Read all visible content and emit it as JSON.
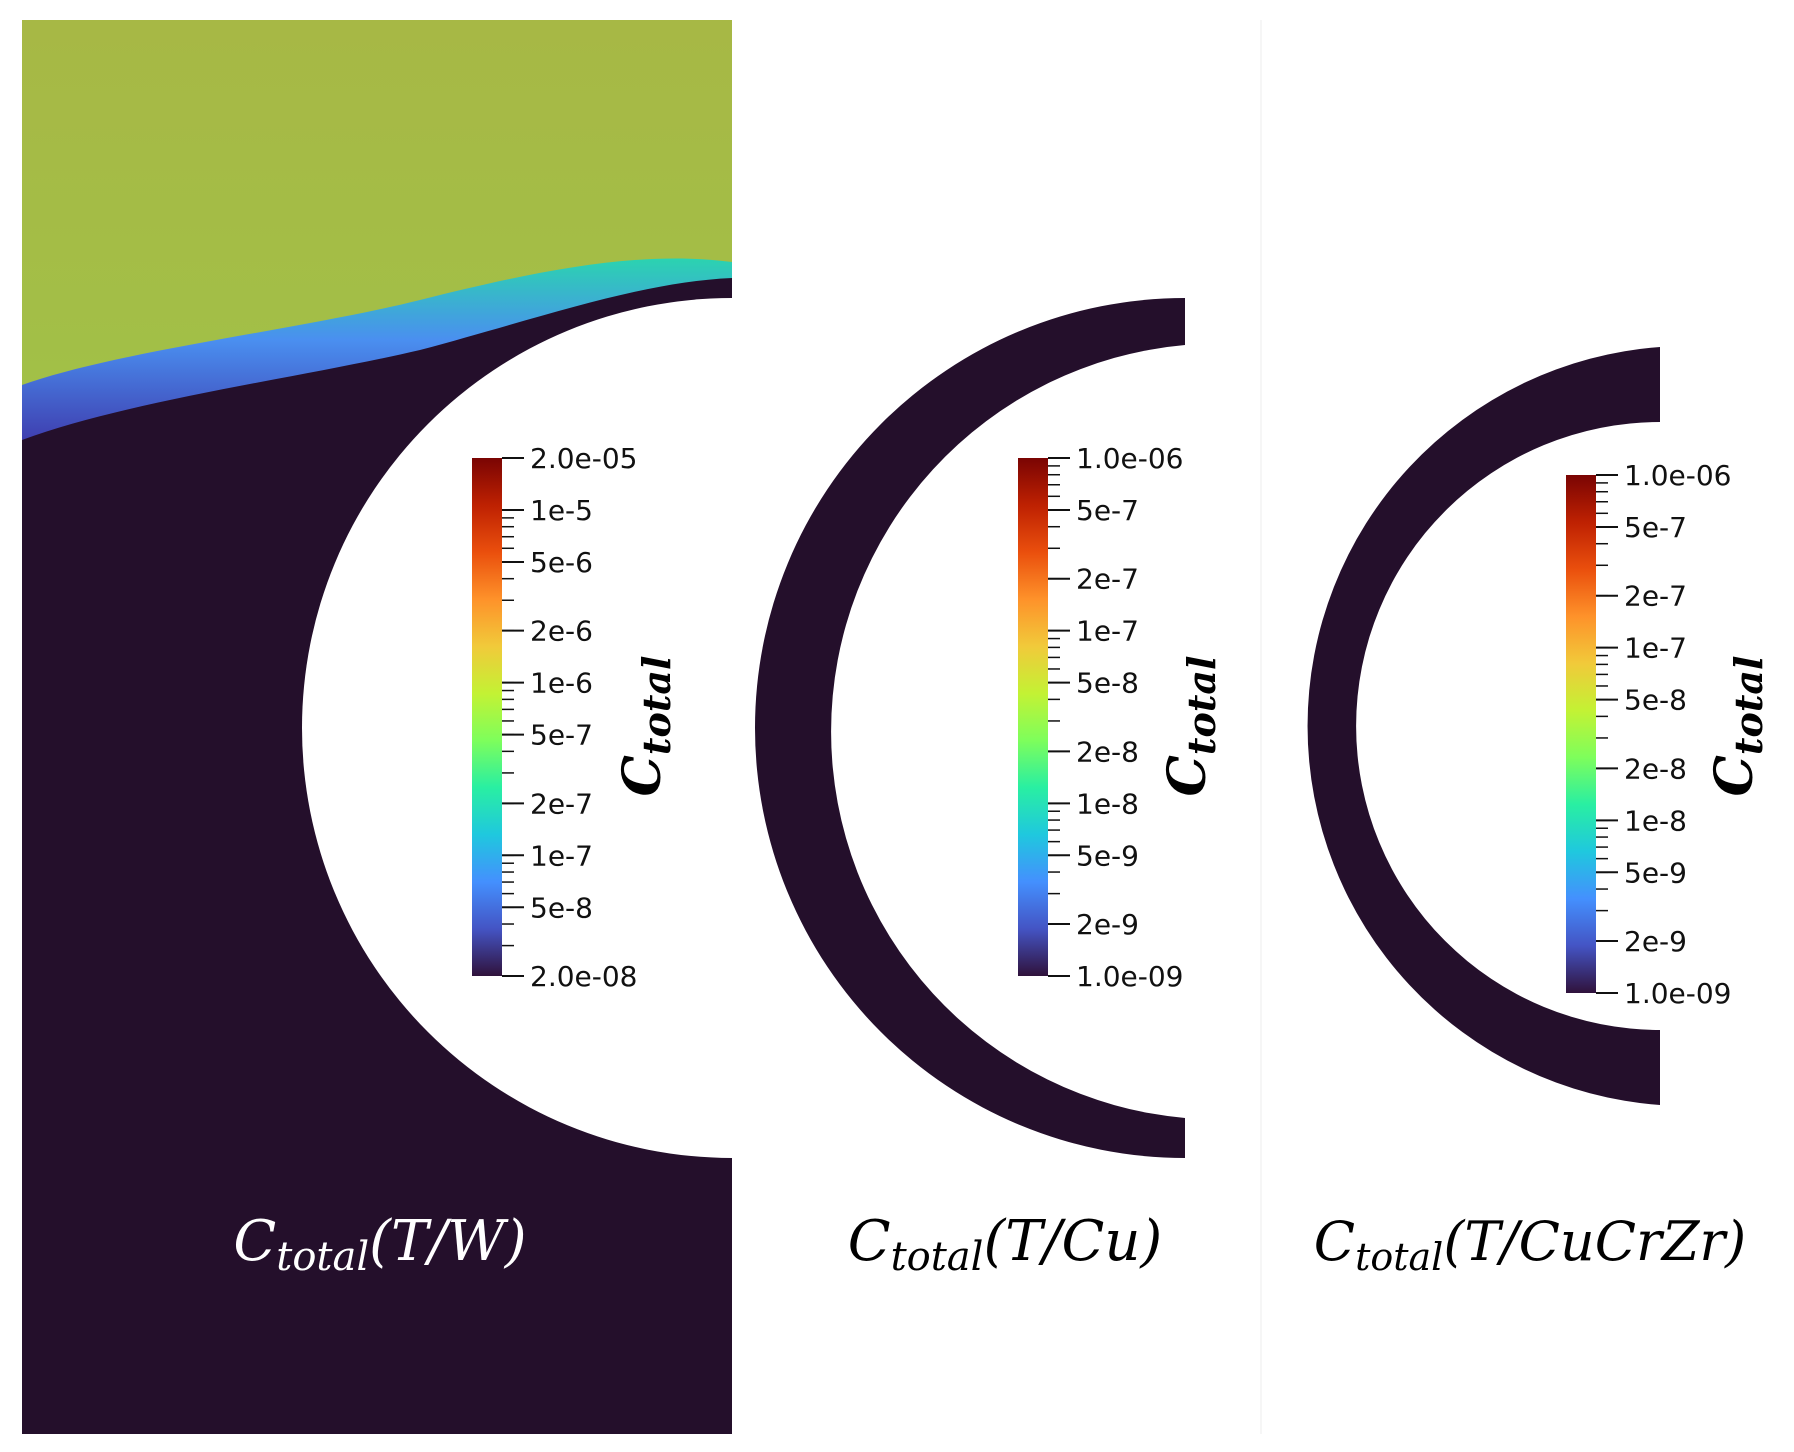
{
  "colors": {
    "background": "#ffffff",
    "low_value": "#240f2b",
    "colormap": [
      "#30123b",
      "#4454c4",
      "#4490fe",
      "#1fc8de",
      "#29efa2",
      "#7efe5b",
      "#c3f234",
      "#f1ca3a",
      "#fe922a",
      "#ea4f0d",
      "#be2102",
      "#7a0403"
    ]
  },
  "panels": [
    {
      "id": "w",
      "title_main": "C",
      "title_sub": "total",
      "title_rest": "(T/W)",
      "colorbar": {
        "title_main": "C",
        "title_sub": "total",
        "scale": "log",
        "range": [
          2e-08,
          2e-05
        ],
        "ticks": [
          {
            "label": "2.0e-05",
            "value": 2e-05
          },
          {
            "label": "1e-5",
            "value": 1e-05
          },
          {
            "label": "5e-6",
            "value": 5e-06
          },
          {
            "label": "2e-6",
            "value": 2e-06
          },
          {
            "label": "1e-6",
            "value": 1e-06
          },
          {
            "label": "5e-7",
            "value": 5e-07
          },
          {
            "label": "2e-7",
            "value": 2e-07
          },
          {
            "label": "1e-7",
            "value": 1e-07
          },
          {
            "label": "5e-8",
            "value": 5e-08
          },
          {
            "label": "2.0e-08",
            "value": 2e-08
          }
        ]
      }
    },
    {
      "id": "cu",
      "title_main": "C",
      "title_sub": "total",
      "title_rest": "(T/Cu)",
      "colorbar": {
        "title_main": "C",
        "title_sub": "total",
        "scale": "log",
        "range": [
          1e-09,
          1e-06
        ],
        "ticks": [
          {
            "label": "1.0e-06",
            "value": 1e-06
          },
          {
            "label": "5e-7",
            "value": 5e-07
          },
          {
            "label": "2e-7",
            "value": 2e-07
          },
          {
            "label": "1e-7",
            "value": 1e-07
          },
          {
            "label": "5e-8",
            "value": 5e-08
          },
          {
            "label": "2e-8",
            "value": 2e-08
          },
          {
            "label": "1e-8",
            "value": 1e-08
          },
          {
            "label": "5e-9",
            "value": 5e-09
          },
          {
            "label": "2e-9",
            "value": 2e-09
          },
          {
            "label": "1.0e-09",
            "value": 1e-09
          }
        ]
      }
    },
    {
      "id": "cucrzr",
      "title_main": "C",
      "title_sub": "total",
      "title_rest": "(T/CuCrZr)",
      "colorbar": {
        "title_main": "C",
        "title_sub": "total",
        "scale": "log",
        "range": [
          1e-09,
          1e-06
        ],
        "ticks": [
          {
            "label": "1.0e-06",
            "value": 1e-06
          },
          {
            "label": "5e-7",
            "value": 5e-07
          },
          {
            "label": "2e-7",
            "value": 2e-07
          },
          {
            "label": "1e-7",
            "value": 1e-07
          },
          {
            "label": "5e-8",
            "value": 5e-08
          },
          {
            "label": "2e-8",
            "value": 2e-08
          },
          {
            "label": "1e-8",
            "value": 1e-08
          },
          {
            "label": "5e-9",
            "value": 5e-09
          },
          {
            "label": "2e-9",
            "value": 2e-09
          },
          {
            "label": "1.0e-09",
            "value": 1e-09
          }
        ]
      }
    }
  ]
}
